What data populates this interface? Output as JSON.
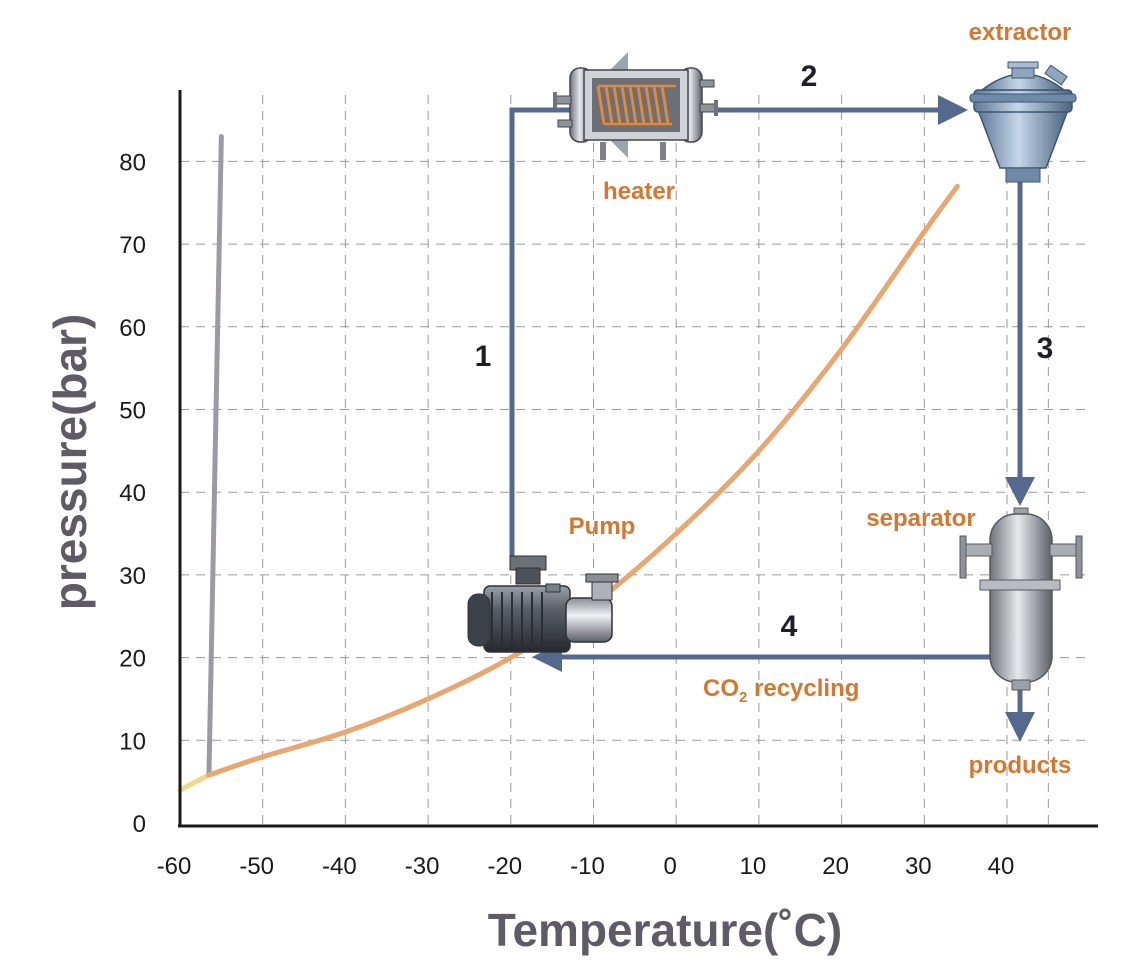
{
  "axes": {
    "x_title": "Temperature(˚C)",
    "y_title": "pressure(bar)",
    "x_ticks": [
      -60,
      -50,
      -40,
      -30,
      -20,
      -10,
      0,
      10,
      20,
      30,
      40
    ],
    "y_ticks": [
      0,
      10,
      20,
      30,
      40,
      50,
      60,
      70,
      80
    ],
    "xlim": [
      -60,
      50
    ],
    "ylim": [
      0,
      88
    ],
    "grid": true
  },
  "phase_curves": {
    "sublimation": {
      "points": [
        [
          -60,
          4
        ],
        [
          -56.5,
          5.8
        ]
      ],
      "color": "#f0d98a"
    },
    "melting": {
      "points": [
        [
          -56.5,
          5.8
        ],
        [
          -55,
          83
        ]
      ],
      "color": "#9d98a6"
    },
    "vaporization": {
      "points": [
        [
          -56.5,
          5.8
        ],
        [
          -50,
          8
        ],
        [
          -40,
          11
        ],
        [
          -30,
          15
        ],
        [
          -20,
          20
        ],
        [
          -10,
          26.5
        ],
        [
          0,
          35
        ],
        [
          10,
          45
        ],
        [
          20,
          57.3
        ],
        [
          30,
          71.5
        ],
        [
          34,
          77
        ]
      ],
      "color": "#e8a670"
    }
  },
  "steps": [
    "1",
    "2",
    "3",
    "4"
  ],
  "components": {
    "heater": "heater",
    "extractor": "extractor",
    "separator": "separator",
    "pump": "Pump",
    "products": "products",
    "recycling_main": "CO",
    "recycling_sub": "2",
    "recycling_rest": " recycling"
  },
  "colors": {
    "flow": "#55698f",
    "label": "#d7772f",
    "axis_title": "#5e5a66"
  }
}
